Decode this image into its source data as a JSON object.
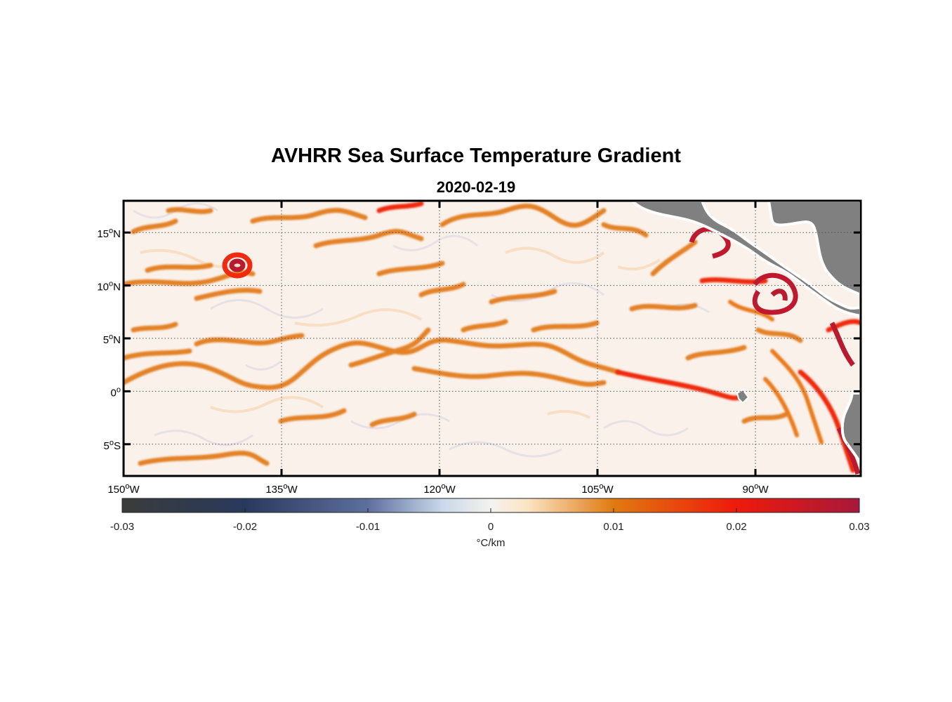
{
  "title": "AVHRR Sea Surface Temperature Gradient",
  "subtitle": "2020-02-19",
  "map": {
    "lon_range": [
      -150,
      -80
    ],
    "lat_range": [
      -8,
      18
    ],
    "lon_ticks": [
      {
        "value": -150,
        "num": "150",
        "hemi": "W"
      },
      {
        "value": -135,
        "num": "135",
        "hemi": "W"
      },
      {
        "value": -120,
        "num": "120",
        "hemi": "W"
      },
      {
        "value": -105,
        "num": "105",
        "hemi": "W"
      },
      {
        "value": -90,
        "num": "90",
        "hemi": "W"
      }
    ],
    "lat_ticks": [
      {
        "value": 15,
        "num": "15",
        "hemi": "N"
      },
      {
        "value": 10,
        "num": "10",
        "hemi": "N"
      },
      {
        "value": 5,
        "num": "5",
        "hemi": "N"
      },
      {
        "value": 0,
        "num": "0",
        "hemi": ""
      },
      {
        "value": -5,
        "num": "5",
        "hemi": "S"
      }
    ],
    "degree_symbol": "o",
    "land_color": "#808080",
    "background_color": "#f9f1ea"
  },
  "colorbar": {
    "min": -0.03,
    "max": 0.03,
    "ticks": [
      {
        "value": -0.03,
        "label": "-0.03"
      },
      {
        "value": -0.02,
        "label": "-0.02"
      },
      {
        "value": -0.01,
        "label": "-0.01"
      },
      {
        "value": 0,
        "label": "0"
      },
      {
        "value": 0.01,
        "label": "0.01"
      },
      {
        "value": 0.02,
        "label": "0.02"
      },
      {
        "value": 0.03,
        "label": "0.03"
      }
    ],
    "unit_label": "°C/km",
    "stops": [
      {
        "value": -0.03,
        "color": "#3b3b3b"
      },
      {
        "value": -0.02,
        "color": "#283a5c"
      },
      {
        "value": -0.01,
        "color": "#5d6f9e"
      },
      {
        "value": -0.004,
        "color": "#c8d8ea"
      },
      {
        "value": 0,
        "color": "#f4f2ee"
      },
      {
        "value": 0.003,
        "color": "#fbe4c4"
      },
      {
        "value": 0.01,
        "color": "#e07a10"
      },
      {
        "value": 0.02,
        "color": "#ef1a0c"
      },
      {
        "value": 0.03,
        "color": "#a8183c"
      }
    ]
  }
}
